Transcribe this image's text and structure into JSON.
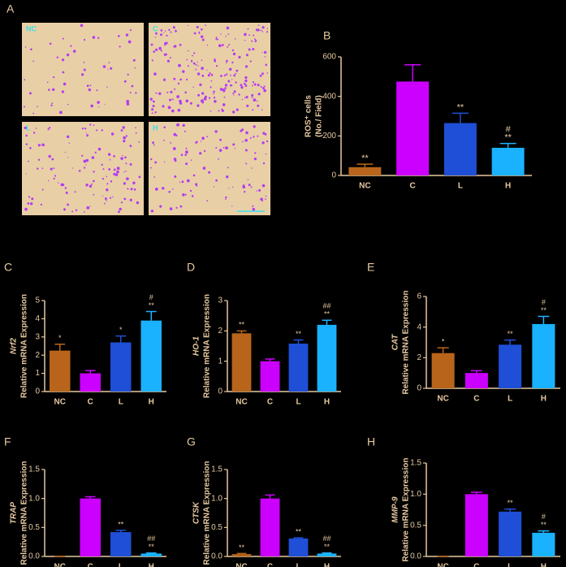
{
  "chart_data": [
    {
      "type": "images",
      "panel_label": "A",
      "labels": [
        "NC",
        "C",
        "L",
        "H"
      ]
    },
    {
      "type": "bar",
      "panel_label": "B",
      "ylabel": [
        "ROS⁺ cells",
        "(No./ Field)"
      ],
      "categories": [
        "NC",
        "C",
        "L",
        "H"
      ],
      "colors": [
        "#b8651b",
        "#cc00ff",
        "#1f4fd6",
        "#1ab2ff"
      ],
      "values": [
        42,
        475,
        265,
        140
      ],
      "errors": [
        15,
        85,
        50,
        22
      ],
      "annotations": [
        [
          "**"
        ],
        [],
        [
          "**"
        ],
        [
          "#",
          "**"
        ]
      ],
      "ylim": [
        0,
        600
      ],
      "yticks": [
        0,
        200,
        400,
        600
      ]
    },
    {
      "type": "bar",
      "panel_label": "C",
      "ylabel": [
        "Nrf2",
        "Relative mRNA Expression"
      ],
      "categories": [
        "NC",
        "C",
        "L",
        "H"
      ],
      "colors": [
        "#b8651b",
        "#cc00ff",
        "#1f4fd6",
        "#1ab2ff"
      ],
      "values": [
        2.25,
        1.0,
        2.7,
        3.9
      ],
      "errors": [
        0.35,
        0.15,
        0.35,
        0.5
      ],
      "annotations": [
        [
          "*"
        ],
        [],
        [
          "*"
        ],
        [
          "#",
          "**"
        ]
      ],
      "ylim": [
        0,
        5
      ],
      "yticks": [
        0,
        1,
        2,
        3,
        4,
        5
      ]
    },
    {
      "type": "bar",
      "panel_label": "D",
      "ylabel": [
        "HO-1",
        "Relative mRNA Expression"
      ],
      "categories": [
        "NC",
        "C",
        "L",
        "H"
      ],
      "colors": [
        "#b8651b",
        "#cc00ff",
        "#1f4fd6",
        "#1ab2ff"
      ],
      "values": [
        1.92,
        1.0,
        1.58,
        2.2
      ],
      "errors": [
        0.08,
        0.07,
        0.12,
        0.15
      ],
      "annotations": [
        [
          "**"
        ],
        [],
        [
          "**"
        ],
        [
          "##",
          "**"
        ]
      ],
      "ylim": [
        0,
        3
      ],
      "yticks": [
        0,
        1,
        2,
        3
      ]
    },
    {
      "type": "bar",
      "panel_label": "E",
      "ylabel": [
        "CAT",
        "Relative mRNA Expression"
      ],
      "categories": [
        "NC",
        "C",
        "L",
        "H"
      ],
      "colors": [
        "#b8651b",
        "#cc00ff",
        "#1f4fd6",
        "#1ab2ff"
      ],
      "values": [
        2.3,
        1.0,
        2.85,
        4.2
      ],
      "errors": [
        0.35,
        0.15,
        0.3,
        0.5
      ],
      "annotations": [
        [
          "*"
        ],
        [],
        [
          "**"
        ],
        [
          "#",
          "**"
        ]
      ],
      "ylim": [
        0,
        6
      ],
      "yticks": [
        0,
        2,
        4,
        6
      ]
    },
    {
      "type": "bar",
      "panel_label": "F",
      "ylabel": [
        "TRAP",
        "Relative mRNA Expression"
      ],
      "categories": [
        "NC",
        "C",
        "L",
        "H"
      ],
      "colors": [
        "#b8651b",
        "#cc00ff",
        "#1f4fd6",
        "#1ab2ff"
      ],
      "values": [
        0,
        1.0,
        0.42,
        0.05
      ],
      "errors": [
        0,
        0.03,
        0.03,
        0.01
      ],
      "annotations": [
        [],
        [],
        [
          "**"
        ],
        [
          "##",
          "**"
        ]
      ],
      "ylim": [
        0,
        1.5
      ],
      "yticks": [
        {
          "value": 0,
          "label": "0.0"
        },
        0.5,
        {
          "value": 1,
          "label": "1.0"
        },
        1.5
      ]
    },
    {
      "type": "bar",
      "panel_label": "G",
      "ylabel": [
        "CTSK",
        "Relative mRNA Expression"
      ],
      "categories": [
        "NC",
        "C",
        "L",
        "H"
      ],
      "colors": [
        "#b8651b",
        "#cc00ff",
        "#1f4fd6",
        "#1ab2ff"
      ],
      "values": [
        0.04,
        1.0,
        0.31,
        0.05
      ],
      "errors": [
        0.01,
        0.06,
        0.01,
        0.01
      ],
      "annotations": [
        [
          "**"
        ],
        [],
        [
          "**"
        ],
        [
          "##",
          "**"
        ]
      ],
      "ylim": [
        0,
        1.5
      ],
      "yticks": [
        {
          "value": 0,
          "label": "0.0"
        },
        0.5,
        {
          "value": 1,
          "label": "1.0"
        },
        1.5
      ]
    },
    {
      "type": "bar",
      "panel_label": "H",
      "ylabel": [
        "MMP-9",
        "Relative mRNA Expression"
      ],
      "categories": [
        "NC",
        "C",
        "L",
        "H"
      ],
      "colors": [
        "#b8651b",
        "#cc00ff",
        "#1f4fd6",
        "#1ab2ff"
      ],
      "values": [
        0,
        1.0,
        0.72,
        0.38
      ],
      "errors": [
        0,
        0.03,
        0.04,
        0.03
      ],
      "annotations": [
        [],
        [],
        [
          "**"
        ],
        [
          "#",
          "**"
        ]
      ],
      "ylim": [
        0,
        1.5
      ],
      "yticks": [
        {
          "value": 0,
          "label": "0.0"
        },
        0.5,
        {
          "value": 1,
          "label": "1.0"
        },
        1.5
      ]
    }
  ]
}
